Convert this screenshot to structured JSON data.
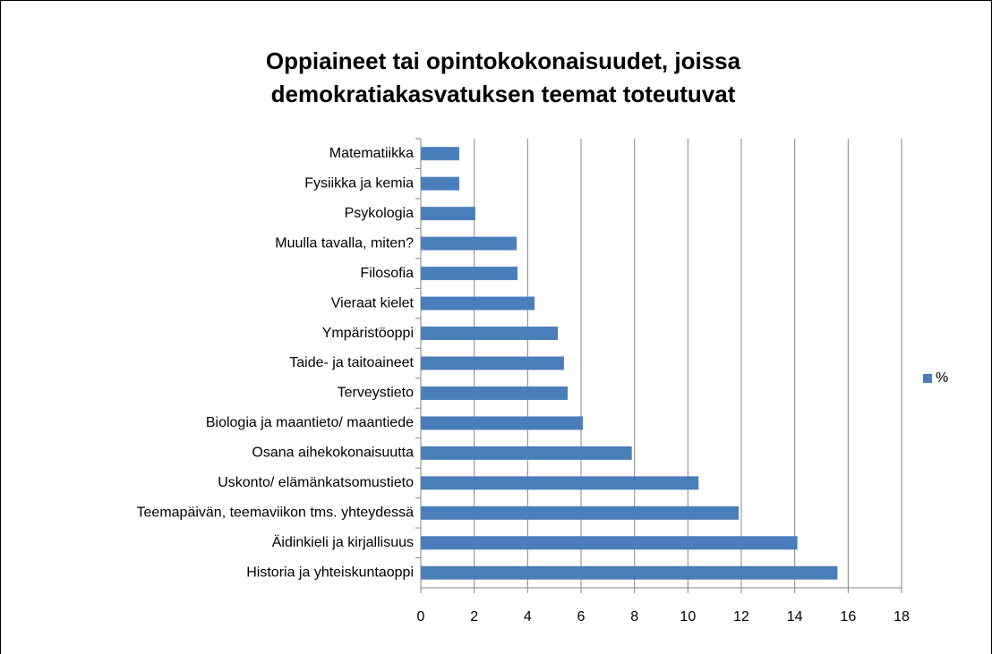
{
  "chart_data": {
    "type": "barh",
    "title": [
      "Oppiaineet tai opintokokonaisuudet, joissa",
      "demokratiakasvatuksen teemat toteutuvat"
    ],
    "categories": [
      "Matematiikka",
      "Fysiikka ja kemia",
      "Psykologia",
      "Muulla tavalla, miten?",
      "Filosofia",
      "Vieraat kielet",
      "Ympäristöoppi",
      "Taide- ja taitoaineet",
      "Terveystieto",
      "Biologia ja maantieto/ maantiede",
      "Osana aihekokonaisuutta",
      "Uskonto/ elämänkatsomustieto",
      "Teemapäivän, teemaviikon tms. yhteydessä",
      "Äidinkieli ja kirjallisuus",
      "Historia ja yhteiskuntaoppi"
    ],
    "series": [
      {
        "name": "%",
        "color": "#4a7ebb",
        "values": [
          1.44,
          1.44,
          2.04,
          3.59,
          3.62,
          4.26,
          5.13,
          5.36,
          5.5,
          6.07,
          7.9,
          10.4,
          11.9,
          14.1,
          15.6
        ]
      }
    ],
    "xlim": [
      0,
      18
    ],
    "xticks": [
      0,
      2,
      4,
      6,
      8,
      10,
      12,
      14,
      16,
      18
    ],
    "grid": true,
    "legend": "right"
  }
}
